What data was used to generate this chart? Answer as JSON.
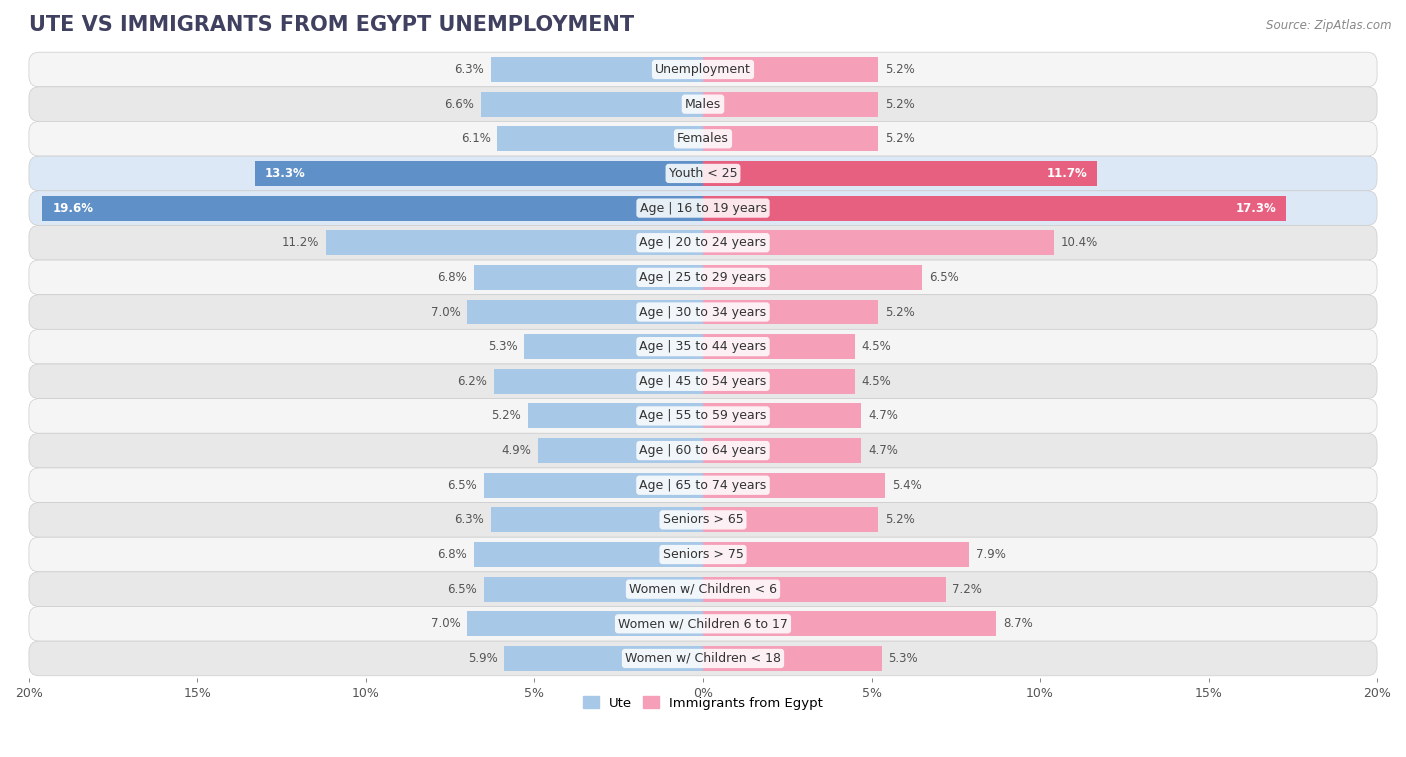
{
  "title": "UTE VS IMMIGRANTS FROM EGYPT UNEMPLOYMENT",
  "source": "Source: ZipAtlas.com",
  "categories": [
    "Unemployment",
    "Males",
    "Females",
    "Youth < 25",
    "Age | 16 to 19 years",
    "Age | 20 to 24 years",
    "Age | 25 to 29 years",
    "Age | 30 to 34 years",
    "Age | 35 to 44 years",
    "Age | 45 to 54 years",
    "Age | 55 to 59 years",
    "Age | 60 to 64 years",
    "Age | 65 to 74 years",
    "Seniors > 65",
    "Seniors > 75",
    "Women w/ Children < 6",
    "Women w/ Children 6 to 17",
    "Women w/ Children < 18"
  ],
  "ute_values": [
    6.3,
    6.6,
    6.1,
    13.3,
    19.6,
    11.2,
    6.8,
    7.0,
    5.3,
    6.2,
    5.2,
    4.9,
    6.5,
    6.3,
    6.8,
    6.5,
    7.0,
    5.9
  ],
  "egypt_values": [
    5.2,
    5.2,
    5.2,
    11.7,
    17.3,
    10.4,
    6.5,
    5.2,
    4.5,
    4.5,
    4.7,
    4.7,
    5.4,
    5.2,
    7.9,
    7.2,
    8.7,
    5.3
  ],
  "ute_color": "#a8c8e8",
  "egypt_color": "#f5a0b8",
  "ute_highlight_color": "#6090c8",
  "egypt_highlight_color": "#e86080",
  "highlight_rows": [
    3,
    4
  ],
  "bar_height": 0.72,
  "max_val": 20.0,
  "title_fontsize": 15,
  "label_fontsize": 9,
  "value_fontsize": 8.5,
  "legend_labels": [
    "Ute",
    "Immigrants from Egypt"
  ],
  "row_bg_even": "#f5f5f5",
  "row_bg_odd": "#e8e8e8",
  "row_bg_highlight": "#dce8f5"
}
